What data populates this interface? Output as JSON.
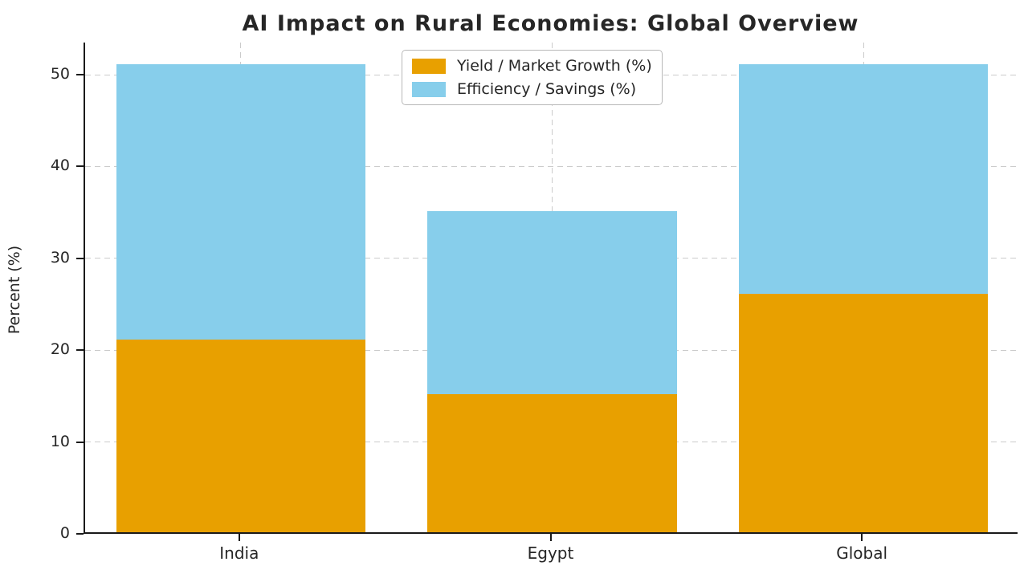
{
  "title": "AI Impact on Rural Economies: Global Overview",
  "chart_data": {
    "type": "bar",
    "stacked": true,
    "title": "AI Impact on Rural Economies: Global Overview",
    "xlabel": "",
    "ylabel": "Percent (%)",
    "categories": [
      "India",
      "Egypt",
      "Global"
    ],
    "series": [
      {
        "name": "Yield / Market Growth (%)",
        "color": "#E8A000",
        "values": [
          21,
          15,
          26
        ]
      },
      {
        "name": "Efficiency / Savings (%)",
        "color": "#87CEEB",
        "values": [
          30,
          20,
          25
        ]
      }
    ],
    "stack_totals": [
      51,
      35,
      51
    ],
    "ylim": [
      0,
      53.5
    ],
    "yticks": [
      0,
      10,
      20,
      30,
      40,
      50
    ],
    "grid": true,
    "grid_style": "dashed",
    "legend_position": "upper center",
    "bar_width_fraction": 0.8
  }
}
